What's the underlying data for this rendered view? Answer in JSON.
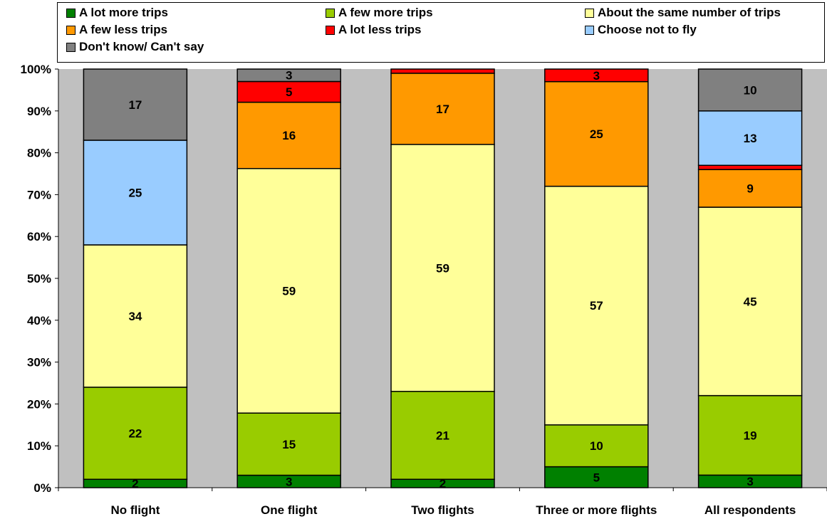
{
  "chart_data": {
    "type": "bar",
    "stacked": true,
    "percent_stacked": true,
    "categories": [
      "No flight",
      "One flight",
      "Two flights",
      "Three or more flights",
      "All respondents"
    ],
    "series": [
      {
        "name": "A lot more trips",
        "color": "#008000",
        "values": [
          2,
          3,
          2,
          5,
          3
        ],
        "labels": [
          "2",
          "3",
          "2",
          "5",
          "3"
        ]
      },
      {
        "name": "A few more trips",
        "color": "#99CC00",
        "values": [
          22,
          15,
          21,
          10,
          19
        ],
        "labels": [
          "22",
          "15",
          "21",
          "10",
          "19"
        ]
      },
      {
        "name": "About the same number of trips",
        "color": "#FFFF99",
        "values": [
          34,
          59,
          59,
          57,
          45
        ],
        "labels": [
          "34",
          "59",
          "59",
          "57",
          "45"
        ]
      },
      {
        "name": "A few less trips",
        "color": "#FF9900",
        "values": [
          0,
          16,
          17,
          25,
          9
        ],
        "labels": [
          "",
          "16",
          "17",
          "25",
          "9"
        ]
      },
      {
        "name": "A lot less trips",
        "color": "#FF0000",
        "values": [
          0,
          5,
          1,
          3,
          1
        ],
        "labels": [
          "",
          "5",
          "",
          "3",
          ""
        ]
      },
      {
        "name": "Choose not to fly",
        "color": "#99CCFF",
        "values": [
          25,
          0,
          0,
          0,
          13
        ],
        "labels": [
          "25",
          "",
          "",
          "",
          "13"
        ]
      },
      {
        "name": "Don't know/ Can't say",
        "color": "#808080",
        "values": [
          17,
          3,
          0,
          0,
          10
        ],
        "labels": [
          "17",
          "3",
          "",
          "",
          "10"
        ]
      }
    ],
    "y_ticks": [
      "0%",
      "10%",
      "20%",
      "30%",
      "40%",
      "50%",
      "60%",
      "70%",
      "80%",
      "90%",
      "100%"
    ],
    "ylim": [
      0,
      100
    ],
    "plot_background": "#C0C0C0",
    "legend_position": "top",
    "grid": false
  }
}
